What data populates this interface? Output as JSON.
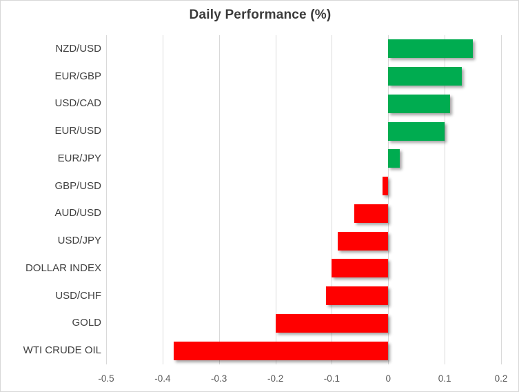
{
  "chart_data": {
    "type": "bar",
    "orientation": "horizontal",
    "title": "Daily Performance (%)",
    "categories": [
      "NZD/USD",
      "EUR/GBP",
      "USD/CAD",
      "EUR/USD",
      "EUR/JPY",
      "GBP/USD",
      "AUD/USD",
      "USD/JPY",
      "DOLLAR INDEX",
      "USD/CHF",
      "GOLD",
      "WTI CRUDE OIL"
    ],
    "values": [
      0.15,
      0.13,
      0.11,
      0.1,
      0.02,
      -0.01,
      -0.06,
      -0.09,
      -0.1,
      -0.11,
      -0.2,
      -0.38
    ],
    "xlabel": "",
    "ylabel": "",
    "xlim": [
      -0.5,
      0.2
    ],
    "xticks": [
      -0.5,
      -0.4,
      -0.3,
      -0.2,
      -0.1,
      0,
      0.1,
      0.2
    ],
    "xtick_labels": [
      "-0.5",
      "-0.4",
      "-0.3",
      "-0.2",
      "-0.1",
      "0",
      "0.1",
      "0.2"
    ],
    "grid": "vertical-on",
    "legend": "none",
    "colors": {
      "positive_bar": "#00AC50",
      "negative_bar": "#FF0000",
      "gridline": "#D9D9D9",
      "title_text": "#3A3A3A",
      "category_text": "#404040",
      "tick_text": "#595959",
      "background": "#FFFFFF"
    }
  }
}
